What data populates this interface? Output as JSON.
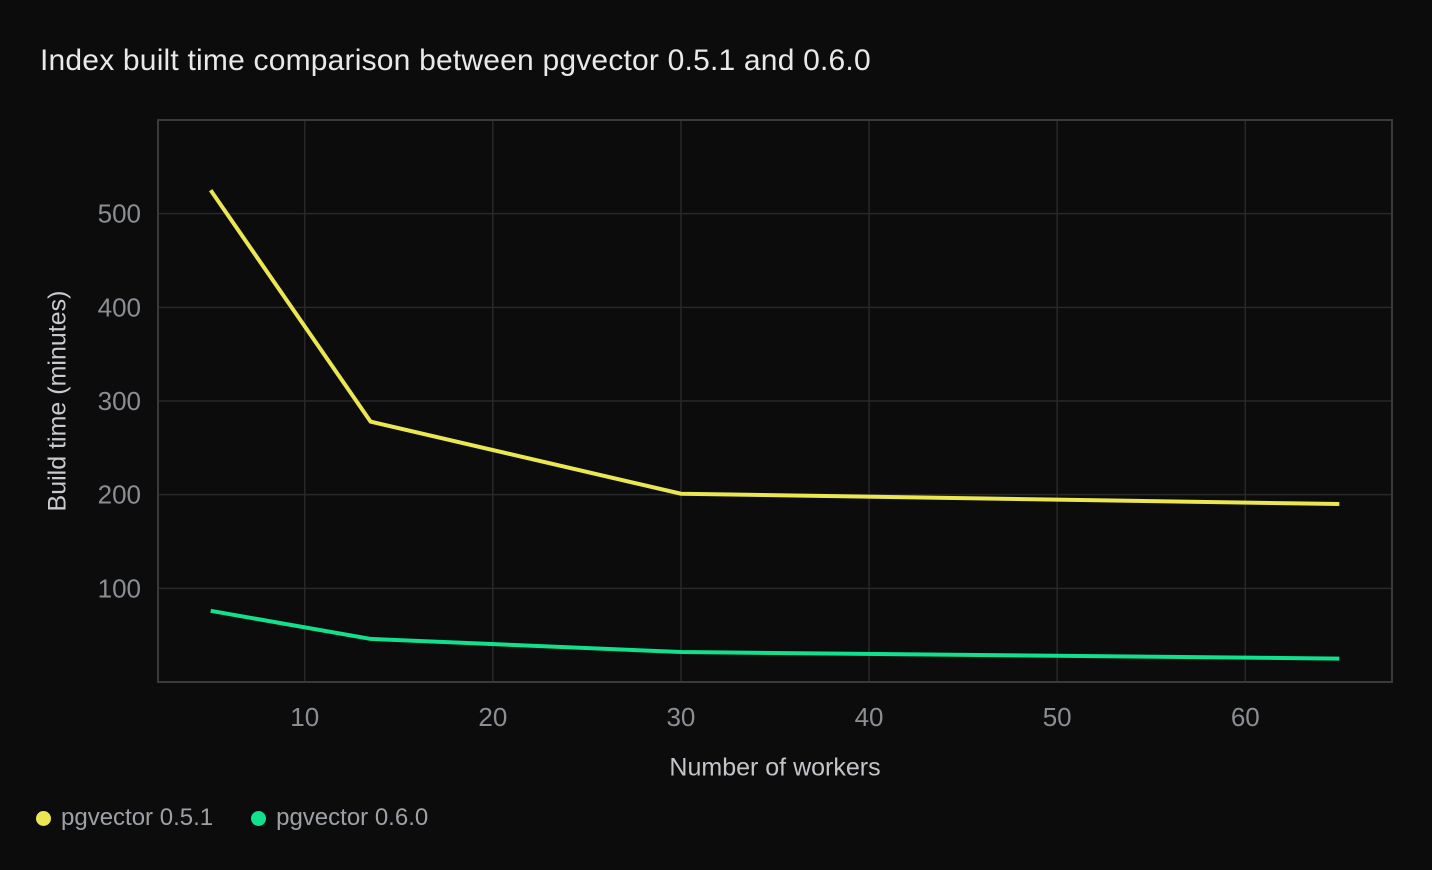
{
  "page": {
    "background": "#0c0c0d"
  },
  "chart_data": {
    "type": "line",
    "title": "Index built time comparison between pgvector 0.5.1 and 0.6.0",
    "xlabel": "Number of workers",
    "ylabel": "Build time (minutes)",
    "x_ticks": [
      10,
      20,
      30,
      40,
      50,
      60
    ],
    "y_ticks": [
      100,
      200,
      300,
      400,
      500
    ],
    "xlim": [
      2.2,
      67.8
    ],
    "ylim": [
      0,
      600
    ],
    "grid": true,
    "legend_position": "bottom-left",
    "colors": {
      "background": "#0c0c0d",
      "grid_line": "#28282b",
      "plot_border": "#3a3a3e",
      "tick_label": "#8b8e93",
      "axis_label": "#c6c8cb",
      "legend_label": "#9da0a5",
      "title": "#e9e9ec",
      "series_yellow": "#ebe750",
      "series_green": "#11e08c"
    },
    "series": [
      {
        "name": "pgvector 0.5.1",
        "color": "#ebe750",
        "x": [
          5,
          13.5,
          30,
          65
        ],
        "values": [
          525,
          278,
          201,
          190
        ]
      },
      {
        "name": "pgvector 0.6.0",
        "color": "#11e08c",
        "x": [
          5,
          13.5,
          30,
          65
        ],
        "values": [
          76,
          46,
          32,
          25
        ]
      }
    ]
  }
}
